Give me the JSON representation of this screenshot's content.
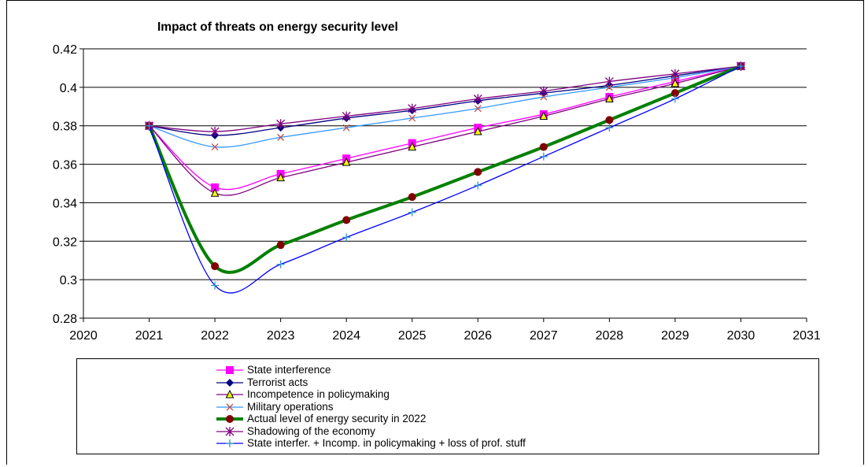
{
  "chart_data": {
    "type": "line",
    "title": "Impact of threats on energy security level",
    "xlabel": "",
    "ylabel": "",
    "xlim": [
      2020,
      2031
    ],
    "ylim": [
      0.28,
      0.42
    ],
    "xticks": [
      2020,
      2021,
      2022,
      2023,
      2024,
      2025,
      2026,
      2027,
      2028,
      2029,
      2030,
      2031
    ],
    "yticks": [
      0.28,
      0.3,
      0.32,
      0.34,
      0.36,
      0.38,
      0.4,
      0.42
    ],
    "ytick_labels": [
      "0.28",
      "0.3",
      "0.32",
      "0.34",
      "0.36",
      "0.38",
      "0.4",
      "0.42"
    ],
    "grid": "horizontal",
    "legend_position": "bottom",
    "x": [
      2021,
      2022,
      2023,
      2024,
      2025,
      2026,
      2027,
      2028,
      2029,
      2030
    ],
    "series": [
      {
        "name": "State interference",
        "color": "#FF00FF",
        "marker": "square",
        "width": 1.3,
        "values": [
          0.38,
          0.348,
          0.355,
          0.363,
          0.371,
          0.379,
          0.386,
          0.395,
          0.403,
          0.411
        ]
      },
      {
        "name": "Terrorist acts",
        "color": "#000080",
        "marker": "diamond",
        "width": 1.3,
        "values": [
          0.38,
          0.375,
          0.379,
          0.384,
          0.388,
          0.393,
          0.397,
          0.401,
          0.406,
          0.411
        ]
      },
      {
        "name": "Incompetence in policymaking",
        "color": "#800080",
        "marker": "triangle",
        "width": 1.3,
        "values": [
          0.38,
          0.345,
          0.353,
          0.361,
          0.369,
          0.377,
          0.385,
          0.394,
          0.402,
          0.411
        ]
      },
      {
        "name": "Military operations",
        "color": "#3399FF",
        "marker": "x",
        "width": 1.3,
        "values": [
          0.38,
          0.369,
          0.374,
          0.379,
          0.384,
          0.389,
          0.395,
          0.4,
          0.405,
          0.411
        ]
      },
      {
        "name": "Actual level of energy security in 2022",
        "color": "#008000",
        "marker": "circle",
        "width": 4,
        "values": [
          0.38,
          0.307,
          0.318,
          0.331,
          0.343,
          0.356,
          0.369,
          0.383,
          0.397,
          0.411
        ]
      },
      {
        "name": "Shadowing of the economy",
        "color": "#800080",
        "marker": "star",
        "width": 1.3,
        "values": [
          0.38,
          0.377,
          0.381,
          0.385,
          0.389,
          0.394,
          0.398,
          0.403,
          0.407,
          0.411
        ]
      },
      {
        "name": "State interfer. + Incomp. in policymaking + loss of prof. stuff",
        "color": "#0000FF",
        "marker": "plus",
        "width": 1.3,
        "values": [
          0.38,
          0.297,
          0.308,
          0.322,
          0.335,
          0.349,
          0.364,
          0.379,
          0.394,
          0.411
        ]
      }
    ]
  }
}
